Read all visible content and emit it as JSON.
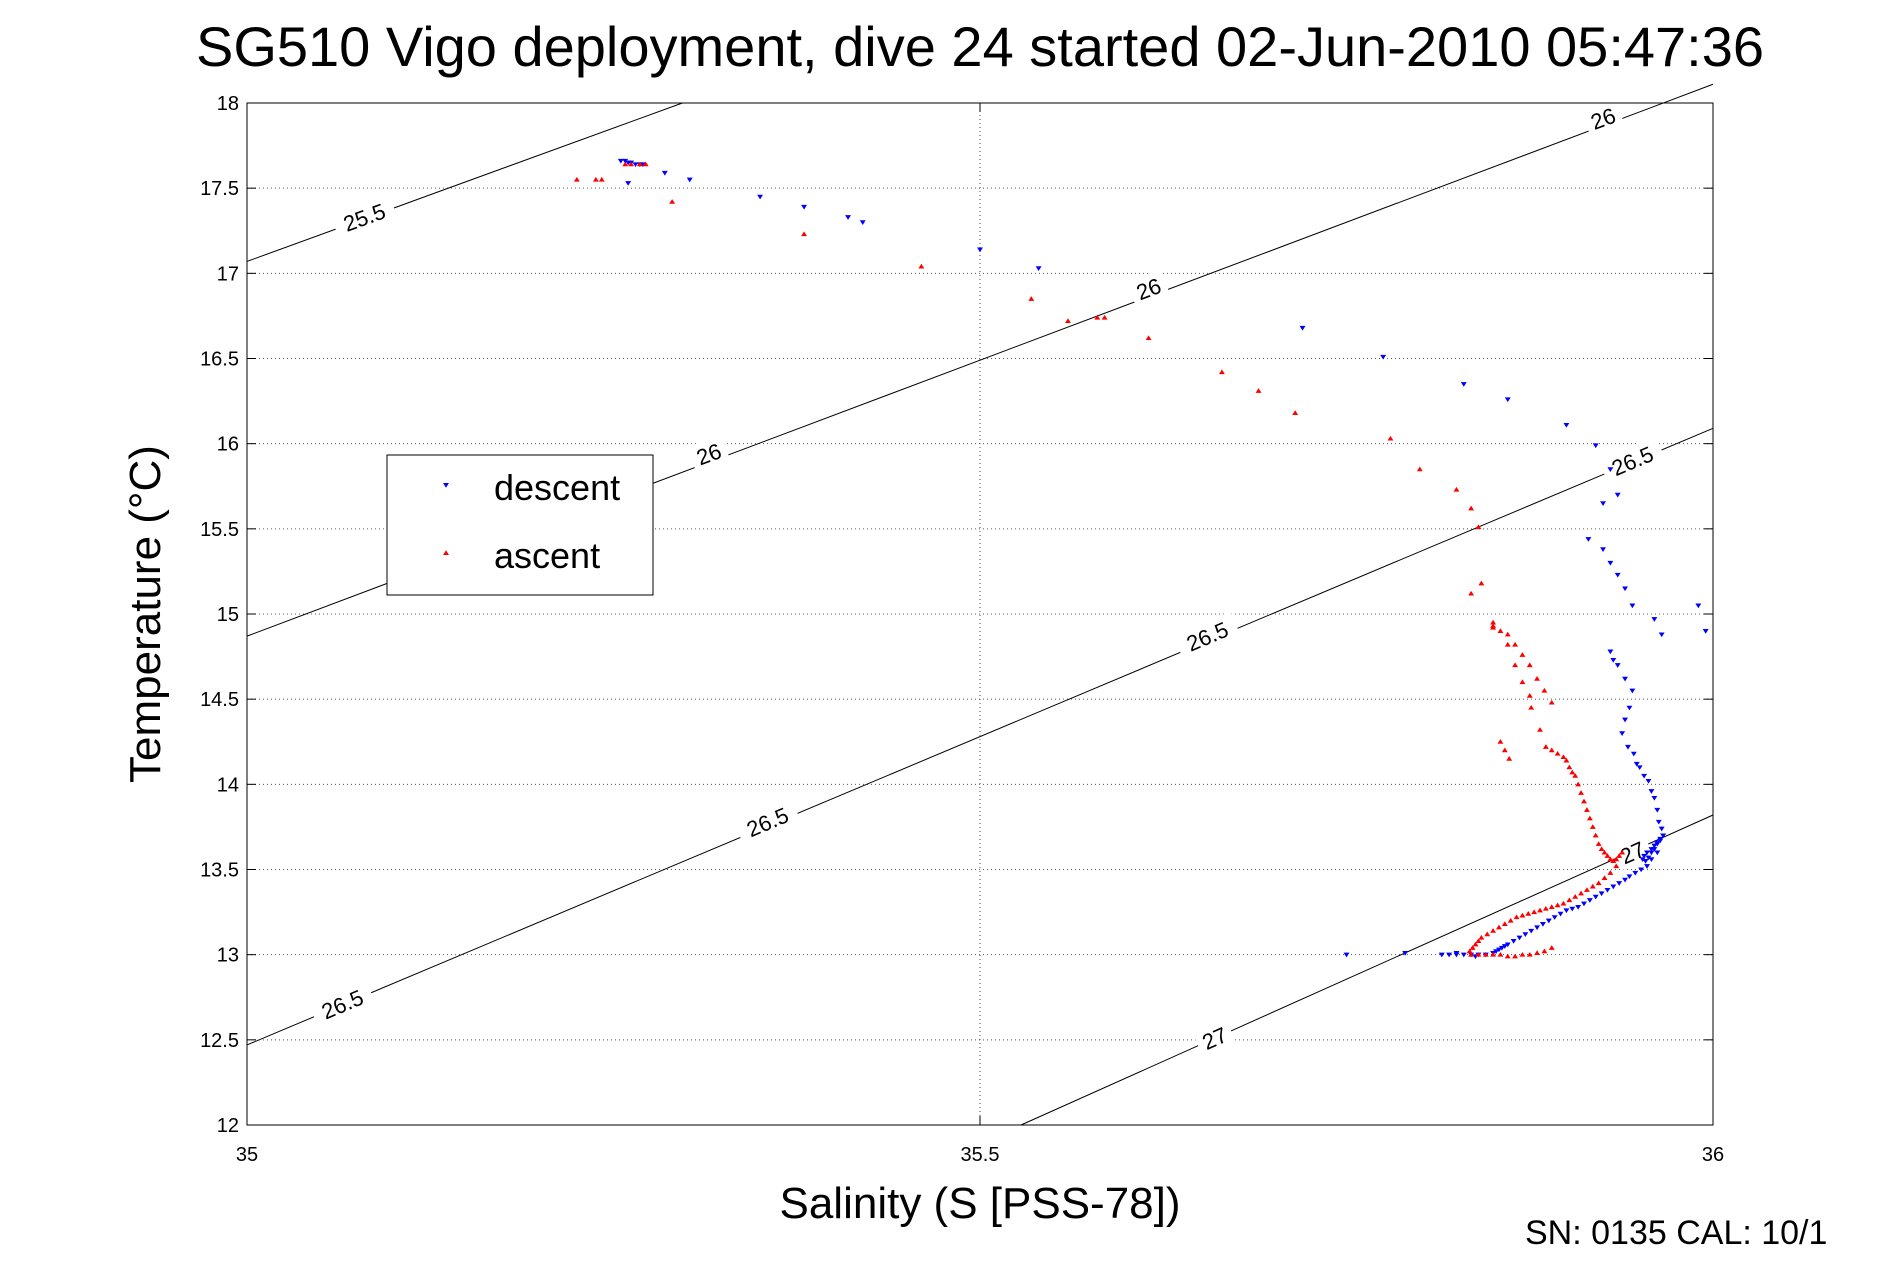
{
  "chart_data": {
    "type": "scatter",
    "title": "SG510 Vigo deployment, dive 24 started 02-Jun-2010 05:47:36",
    "xlabel": "Salinity (S [PSS-78])",
    "ylabel": "Temperature (°C)",
    "xlim": [
      35,
      36
    ],
    "ylim": [
      12,
      18
    ],
    "x_ticks": [
      "35",
      "35.5",
      "36"
    ],
    "y_ticks": [
      "12",
      "12.5",
      "13",
      "13.5",
      "14",
      "14.5",
      "15",
      "15.5",
      "16",
      "16.5",
      "17",
      "17.5",
      "18"
    ],
    "grid": true,
    "legend_position": "left",
    "footer": "SN: 0135  CAL: 10/1",
    "contours": [
      {
        "label": "25.5",
        "points": [
          [
            35.0,
            17.07
          ],
          [
            35.297,
            18.0
          ]
        ],
        "label_at": [
          35.08,
          17.33
        ]
      },
      {
        "label": "26",
        "points": [
          [
            35.0,
            14.87
          ],
          [
            36.0,
            18.11
          ]
        ],
        "label_at": [
          35.315,
          15.94
        ]
      },
      {
        "label": "26",
        "points": [
          [
            35.0,
            14.87
          ],
          [
            36.0,
            18.11
          ]
        ],
        "label_at": [
          35.615,
          16.91
        ]
      },
      {
        "label": "26",
        "points": [
          [
            35.0,
            14.87
          ],
          [
            36.0,
            18.11
          ]
        ],
        "label_at": [
          35.925,
          17.91
        ]
      },
      {
        "label": "26.5",
        "points": [
          [
            35.0,
            12.47
          ],
          [
            36.0,
            16.09
          ]
        ],
        "label_at": [
          35.065,
          12.71
        ]
      },
      {
        "label": "26.5",
        "points": [
          [
            35.0,
            12.47
          ],
          [
            36.0,
            16.09
          ]
        ],
        "label_at": [
          35.355,
          13.78
        ]
      },
      {
        "label": "26.5",
        "points": [
          [
            35.0,
            12.47
          ],
          [
            36.0,
            16.09
          ]
        ],
        "label_at": [
          35.655,
          14.87
        ]
      },
      {
        "label": "26.5",
        "points": [
          [
            35.0,
            12.47
          ],
          [
            36.0,
            16.09
          ]
        ],
        "label_at": [
          35.945,
          15.9
        ]
      },
      {
        "label": "27",
        "points": [
          [
            35.528,
            12.0
          ],
          [
            36.0,
            13.82
          ]
        ],
        "label_at": [
          35.66,
          12.51
        ]
      },
      {
        "label": "27",
        "points": [
          [
            35.528,
            12.0
          ],
          [
            36.0,
            13.82
          ]
        ],
        "label_at": [
          35.945,
          13.6
        ]
      }
    ],
    "series": [
      {
        "name": "descent",
        "color": "#0000ff",
        "marker": "triangle-down",
        "x": [
          35.255,
          35.258,
          35.26,
          35.262,
          35.265,
          35.268,
          35.27,
          35.26,
          35.285,
          35.302,
          35.35,
          35.38,
          35.41,
          35.42,
          35.5,
          35.54,
          35.72,
          35.775,
          35.83,
          35.86,
          35.9,
          35.92,
          35.93,
          35.935,
          35.925,
          35.915,
          35.925,
          35.93,
          35.935,
          35.94,
          35.945,
          35.96,
          35.965,
          35.99,
          35.995,
          35.93,
          35.932,
          35.935,
          35.94,
          35.945,
          35.943,
          35.94,
          35.938,
          35.942,
          35.946,
          35.948,
          35.95,
          35.953,
          35.956,
          35.958,
          35.96,
          35.962,
          35.963,
          35.965,
          35.966,
          35.964,
          35.962,
          35.96,
          35.958,
          35.955,
          35.953,
          35.952,
          35.954,
          35.956,
          35.958,
          35.96,
          35.962,
          35.964,
          35.966,
          35.962,
          35.958,
          35.955,
          35.951,
          35.947,
          35.943,
          35.94,
          35.936,
          35.932,
          35.928,
          35.924,
          35.92,
          35.916,
          35.912,
          35.908,
          35.904,
          35.9,
          35.896,
          35.892,
          35.888,
          35.884,
          35.88,
          35.876,
          35.872,
          35.868,
          35.864,
          35.86,
          35.858,
          35.856,
          35.854,
          35.852,
          35.85,
          35.845,
          35.84,
          35.835,
          35.83,
          35.825,
          35.82,
          35.815,
          35.75,
          35.79,
          35.825,
          35.838
        ],
        "y": [
          17.66,
          17.66,
          17.65,
          17.65,
          17.64,
          17.64,
          17.64,
          17.53,
          17.59,
          17.55,
          17.45,
          17.39,
          17.33,
          17.3,
          17.14,
          17.03,
          16.68,
          16.51,
          16.35,
          16.26,
          16.11,
          15.99,
          15.85,
          15.7,
          15.65,
          15.44,
          15.38,
          15.3,
          15.23,
          15.15,
          15.05,
          14.97,
          14.88,
          15.05,
          14.9,
          14.78,
          14.73,
          14.7,
          14.62,
          14.55,
          14.45,
          14.38,
          14.3,
          14.22,
          14.18,
          14.12,
          14.1,
          14.05,
          14.02,
          13.96,
          13.92,
          13.85,
          13.78,
          13.74,
          13.7,
          13.68,
          13.66,
          13.64,
          13.62,
          13.6,
          13.58,
          13.56,
          13.55,
          13.57,
          13.6,
          13.62,
          13.65,
          13.67,
          13.7,
          13.6,
          13.56,
          13.52,
          13.5,
          13.48,
          13.46,
          13.44,
          13.42,
          13.4,
          13.38,
          13.36,
          13.34,
          13.32,
          13.3,
          13.28,
          13.27,
          13.26,
          13.24,
          13.22,
          13.2,
          13.18,
          13.16,
          13.14,
          13.12,
          13.1,
          13.08,
          13.06,
          13.05,
          13.04,
          13.03,
          13.02,
          13.01,
          13.0,
          13.0,
          13.0,
          13.0,
          13.01,
          13.0,
          13.0,
          13.0,
          13.01,
          13.0,
          12.99
        ]
      },
      {
        "name": "ascent",
        "color": "#ff0000",
        "marker": "triangle-up",
        "x": [
          35.225,
          35.238,
          35.242,
          35.258,
          35.262,
          35.268,
          35.272,
          35.29,
          35.38,
          35.46,
          35.535,
          35.56,
          35.58,
          35.585,
          35.615,
          35.665,
          35.69,
          35.715,
          35.78,
          35.8,
          35.825,
          35.835,
          35.84,
          35.842,
          35.835,
          35.85,
          35.85,
          35.855,
          35.86,
          35.865,
          35.87,
          35.875,
          35.876,
          35.882,
          35.886,
          35.89,
          35.894,
          35.898,
          35.9,
          35.902,
          35.904,
          35.906,
          35.908,
          35.91,
          35.912,
          35.914,
          35.916,
          35.918,
          35.92,
          35.922,
          35.924,
          35.926,
          35.928,
          35.93,
          35.932,
          35.934,
          35.936,
          35.938,
          35.934,
          35.93,
          35.926,
          35.922,
          35.918,
          35.914,
          35.91,
          35.906,
          35.902,
          35.898,
          35.894,
          35.89,
          35.886,
          35.882,
          35.878,
          35.874,
          35.87,
          35.866,
          35.862,
          35.858,
          35.854,
          35.85,
          35.846,
          35.842,
          35.84,
          35.838,
          35.836,
          35.834,
          35.835,
          35.84,
          35.845,
          35.85,
          35.855,
          35.86,
          35.865,
          35.87,
          35.875,
          35.88,
          35.885,
          35.89,
          35.85,
          35.86,
          35.865,
          35.87,
          35.875,
          35.88,
          35.885,
          35.89,
          35.855,
          35.858,
          35.861
        ],
        "y": [
          17.55,
          17.55,
          17.55,
          17.64,
          17.64,
          17.64,
          17.64,
          17.42,
          17.23,
          17.04,
          16.85,
          16.72,
          16.74,
          16.74,
          16.62,
          16.42,
          16.31,
          16.18,
          16.03,
          15.85,
          15.73,
          15.62,
          15.51,
          15.18,
          15.12,
          14.92,
          14.93,
          14.9,
          14.82,
          14.7,
          14.6,
          14.52,
          14.45,
          14.32,
          14.22,
          14.2,
          14.18,
          14.16,
          14.14,
          14.1,
          14.07,
          14.05,
          14.0,
          13.95,
          13.9,
          13.85,
          13.8,
          13.75,
          13.7,
          13.65,
          13.62,
          13.6,
          13.58,
          13.56,
          13.55,
          13.56,
          13.58,
          13.6,
          13.52,
          13.48,
          13.45,
          13.42,
          13.4,
          13.38,
          13.36,
          13.34,
          13.32,
          13.3,
          13.29,
          13.28,
          13.27,
          13.26,
          13.25,
          13.24,
          13.23,
          13.22,
          13.2,
          13.18,
          13.16,
          13.14,
          13.12,
          13.1,
          13.08,
          13.06,
          13.04,
          13.02,
          13.0,
          13.0,
          13.0,
          13.0,
          13.0,
          12.99,
          12.99,
          13.0,
          13.0,
          13.01,
          13.02,
          13.04,
          14.95,
          14.88,
          14.82,
          14.76,
          14.7,
          14.62,
          14.55,
          14.48,
          14.25,
          14.2,
          14.15
        ]
      }
    ]
  }
}
